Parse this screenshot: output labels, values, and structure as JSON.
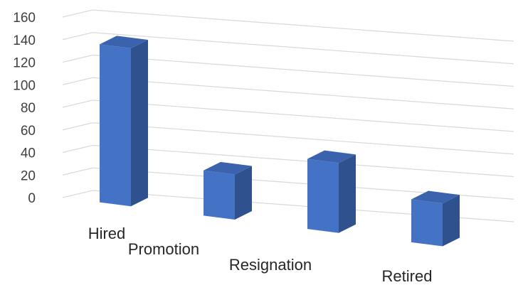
{
  "chart_data": {
    "type": "bar",
    "style": "3d-column",
    "title": "",
    "xlabel": "",
    "ylabel": "",
    "categories": [
      "Hired",
      "Promotion",
      "Resignation",
      "Retired"
    ],
    "values": [
      140,
      40,
      62,
      38
    ],
    "ylim": [
      0,
      160
    ],
    "yticks": [
      "0",
      "20",
      "40",
      "60",
      "80",
      "100",
      "120",
      "140",
      "160"
    ],
    "grid": true,
    "legend": "none",
    "colors": {
      "bar_front": "#4472c4",
      "bar_side": "#2f528f",
      "bar_top": "#3b63ad",
      "grid": "#d9d9d9"
    }
  }
}
